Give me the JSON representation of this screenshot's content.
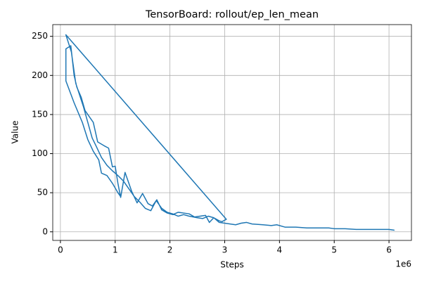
{
  "chart_data": {
    "type": "line",
    "title": "TensorBoard: rollout/ep_len_mean",
    "x_label": "Steps",
    "y_label": "Value",
    "x_offset_label": "1e6",
    "x": [
      1.1,
      1.05,
      0.95,
      0.85,
      0.75,
      0.7,
      0.6,
      0.5,
      0.4,
      0.25,
      0.1,
      0.1,
      0.19,
      0.25,
      0.3,
      0.38,
      0.45,
      0.52,
      0.6,
      0.68,
      0.8,
      0.88,
      0.95,
      1.0,
      1.05,
      1.1,
      1.18,
      1.3,
      1.4,
      1.5,
      1.6,
      1.68,
      1.76,
      1.85,
      1.95,
      2.05,
      2.15,
      2.25,
      2.35,
      2.45,
      2.55,
      2.65,
      2.72,
      2.8,
      2.9,
      2.95,
      3.03,
      0.1,
      0.2,
      0.28,
      0.35,
      0.42,
      0.5,
      0.58,
      0.65,
      0.75,
      0.85,
      0.95,
      1.05,
      1.15,
      1.25,
      1.35,
      1.45,
      1.55,
      1.65,
      1.75,
      1.85,
      1.95,
      2.05,
      2.15,
      2.25,
      2.35,
      2.5,
      2.6,
      2.7,
      2.8,
      2.9,
      3.0,
      3.1,
      3.2,
      3.3,
      3.4,
      3.5,
      3.7,
      3.85,
      3.95,
      4.1,
      4.3,
      4.5,
      4.7,
      4.9,
      5.0,
      5.2,
      5.4,
      5.6,
      5.8,
      6.0,
      6.1
    ],
    "series": [
      {
        "color": "#1f77b4",
        "values": [
          45,
          50,
          62,
          72,
          75,
          92,
          103,
          118,
          140,
          165,
          193,
          234,
          238,
          200,
          185,
          172,
          155,
          148,
          140,
          115,
          110,
          107,
          83,
          84,
          62,
          44,
          76,
          52,
          37,
          49,
          36,
          33,
          41,
          28,
          24,
          22,
          25,
          24,
          23,
          19,
          20,
          21,
          12,
          18,
          14,
          13,
          16,
          252,
          230,
          190,
          175,
          160,
          140,
          120,
          110,
          95,
          85,
          78,
          72,
          65,
          55,
          45,
          38,
          30,
          27,
          40,
          30,
          25,
          23,
          20,
          22,
          20,
          18,
          17,
          20,
          18,
          12,
          11,
          10,
          9,
          11,
          12,
          10,
          9,
          8,
          9,
          6,
          6,
          5,
          5,
          5,
          4,
          4,
          3,
          3,
          3,
          3,
          2
        ]
      }
    ],
    "xlim": [
      -0.14,
      6.41
    ],
    "ylim": [
      -11,
      265
    ],
    "xticks": [
      0,
      1,
      2,
      3,
      4,
      5,
      6
    ],
    "yticks": [
      0,
      50,
      100,
      150,
      200,
      250
    ],
    "grid": true
  }
}
